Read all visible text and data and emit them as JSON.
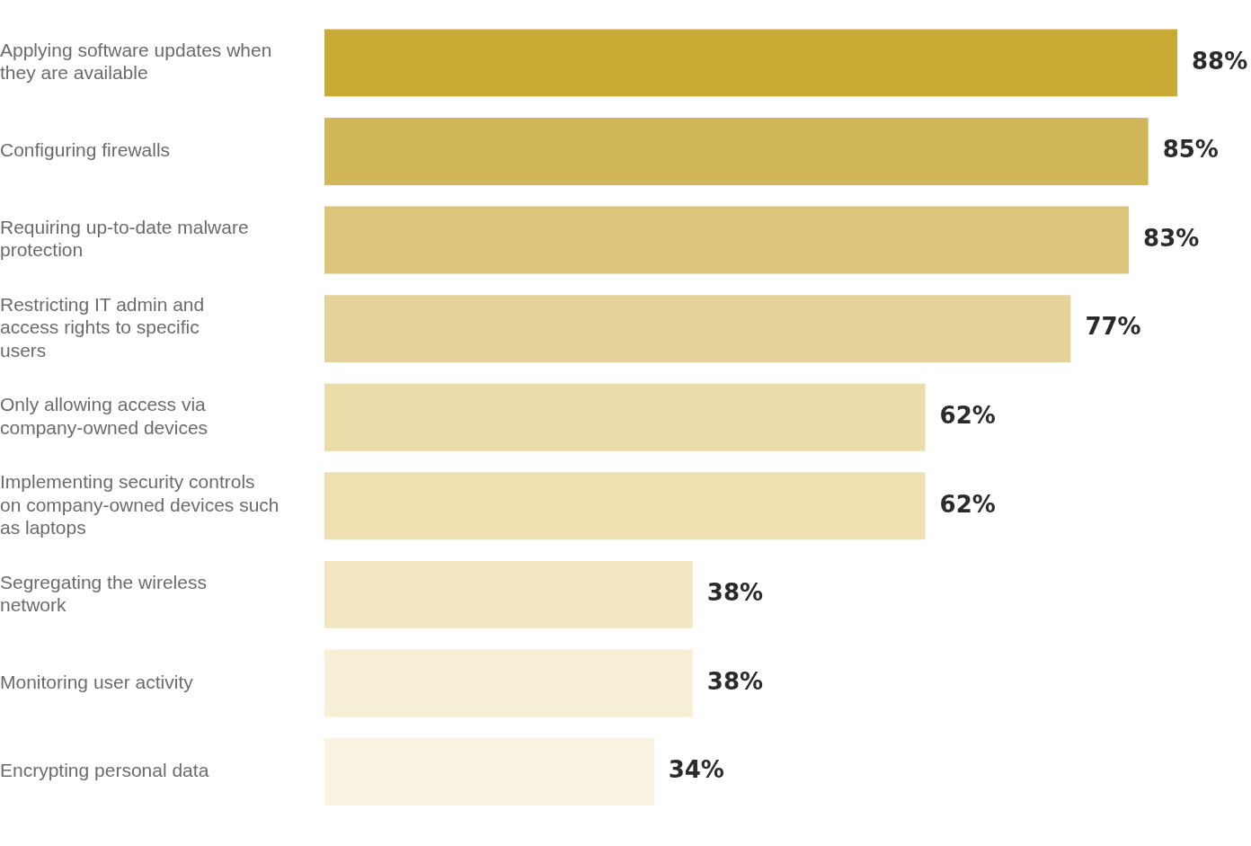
{
  "chart_data": {
    "type": "bar",
    "orientation": "horizontal",
    "categories": [
      "Applying software updates when they are available",
      "Configuring firewalls",
      "Requiring up-to-date malware protection",
      "Restricting IT admin and access rights to specific users",
      "Only allowing access via company-owned devices",
      "Implementing security controls on company-owned devices such as laptops",
      "Segregating the wireless network",
      "Monitoring user activity",
      "Encrypting personal data"
    ],
    "values": [
      88,
      85,
      83,
      77,
      62,
      62,
      38,
      38,
      34
    ],
    "colors": [
      "#c9aa35",
      "#d2b759",
      "#dcc57a",
      "#e4d298",
      "#ecdcaa",
      "#eee0b1",
      "#f2e7c2",
      "#f6efd6",
      "#f9f2e0"
    ],
    "value_labels": [
      "88%",
      "85%",
      "83%",
      "77%",
      "62%",
      "62%",
      "38%",
      "38%",
      "34%"
    ],
    "grid": false,
    "legend": false
  }
}
